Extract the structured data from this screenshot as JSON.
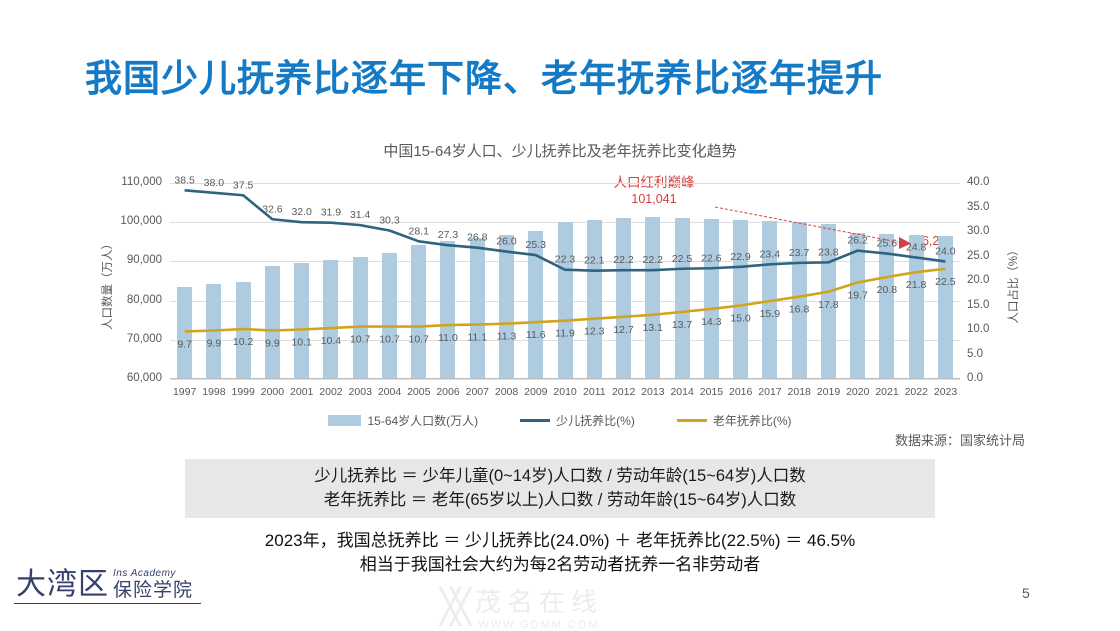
{
  "slide": {
    "title": "我国少儿抚养比逐年下降、老年抚养比逐年提升",
    "page_number": "5"
  },
  "chart": {
    "title": "中国15-64岁人口、少儿抚养比及老年抚养比变化趋势",
    "left_axis": {
      "title": "人口数量（万人）",
      "ticks": [
        "110,000",
        "100,000",
        "90,000",
        "80,000",
        "70,000",
        "60,000"
      ]
    },
    "right_axis": {
      "title": "人口占比（%）",
      "ticks": [
        "40.0",
        "35.0",
        "30.0",
        "25.0",
        "20.0",
        "15.0",
        "10.0",
        "5.0",
        "0.0"
      ]
    },
    "annotation": {
      "label": "人口红利巅峰",
      "peak_value": "101,041",
      "end_value": "96,228",
      "color": "#D43F3F"
    },
    "legend": [
      {
        "label": "15-64岁人口数(万人)",
        "type": "bar",
        "color": "#AECBDF"
      },
      {
        "label": "少儿抚养比(%)",
        "type": "line",
        "color": "#2F6380"
      },
      {
        "label": "老年抚养比(%)",
        "type": "line",
        "color": "#D2A41D"
      }
    ],
    "source": "数据来源：国家统计局"
  },
  "chart_data": {
    "type": "bar",
    "categories": [
      "1997",
      "1998",
      "1999",
      "2000",
      "2001",
      "2002",
      "2003",
      "2004",
      "2005",
      "2006",
      "2007",
      "2008",
      "2009",
      "2010",
      "2011",
      "2012",
      "2013",
      "2014",
      "2015",
      "2016",
      "2017",
      "2018",
      "2019",
      "2020",
      "2021",
      "2022",
      "2023"
    ],
    "series": [
      {
        "name": "15-64岁人口数(万人)",
        "type": "bar",
        "axis": "left",
        "color": "#AECBDF",
        "values": [
          83100,
          83900,
          84600,
          88700,
          89400,
          90200,
          90900,
          91900,
          94000,
          95000,
          95700,
          96600,
          97500,
          99900,
          100300,
          100700,
          101041,
          100800,
          100600,
          100300,
          100100,
          99800,
          99400,
          97000,
          96700,
          96450,
          96228
        ]
      },
      {
        "name": "少儿抚养比(%)",
        "type": "line",
        "axis": "right",
        "color": "#2F6380",
        "values": [
          38.5,
          38.0,
          37.5,
          32.6,
          32.0,
          31.9,
          31.4,
          30.3,
          28.1,
          27.3,
          26.8,
          26.0,
          25.3,
          22.3,
          22.1,
          22.2,
          22.2,
          22.5,
          22.6,
          22.9,
          23.4,
          23.7,
          23.8,
          26.2,
          25.6,
          24.8,
          24.0
        ]
      },
      {
        "name": "老年抚养比(%)",
        "type": "line",
        "axis": "right",
        "color": "#D2A41D",
        "values": [
          9.7,
          9.9,
          10.2,
          9.9,
          10.1,
          10.4,
          10.7,
          10.7,
          10.7,
          11.0,
          11.1,
          11.3,
          11.6,
          11.9,
          12.3,
          12.7,
          13.1,
          13.7,
          14.3,
          15.0,
          15.9,
          16.8,
          17.8,
          19.7,
          20.8,
          21.8,
          22.5
        ]
      }
    ],
    "title": "中国15-64岁人口、少儿抚养比及老年抚养比变化趋势",
    "xlabel": "",
    "ylabel_left": "人口数量（万人）",
    "ylabel_right": "人口占比（%）",
    "left_ylim": [
      60000,
      110000
    ],
    "right_ylim": [
      0,
      40
    ],
    "grid": true,
    "legend_position": "bottom"
  },
  "definitions": {
    "line1": "少儿抚养比 ＝ 少年儿童(0~14岁)人口数 / 劳动年龄(15~64岁)人口数",
    "line2": "老年抚养比 ＝ 老年(65岁以上)人口数 / 劳动年龄(15~64岁)人口数"
  },
  "summary": {
    "line1": "2023年，我国总抚养比 ＝ 少儿抚养比(24.0%) ＋ 老年抚养比(22.5%) ＝ 46.5%",
    "line2": "相当于我国社会大约为每2名劳动者抚养一名非劳动者"
  },
  "logo": {
    "zh_big": "大湾区",
    "zh_small": "保险学院",
    "en": "Ins Academy"
  },
  "watermark": {
    "zh": "茂名在线",
    "url": "WWW.GDMM.COM"
  }
}
